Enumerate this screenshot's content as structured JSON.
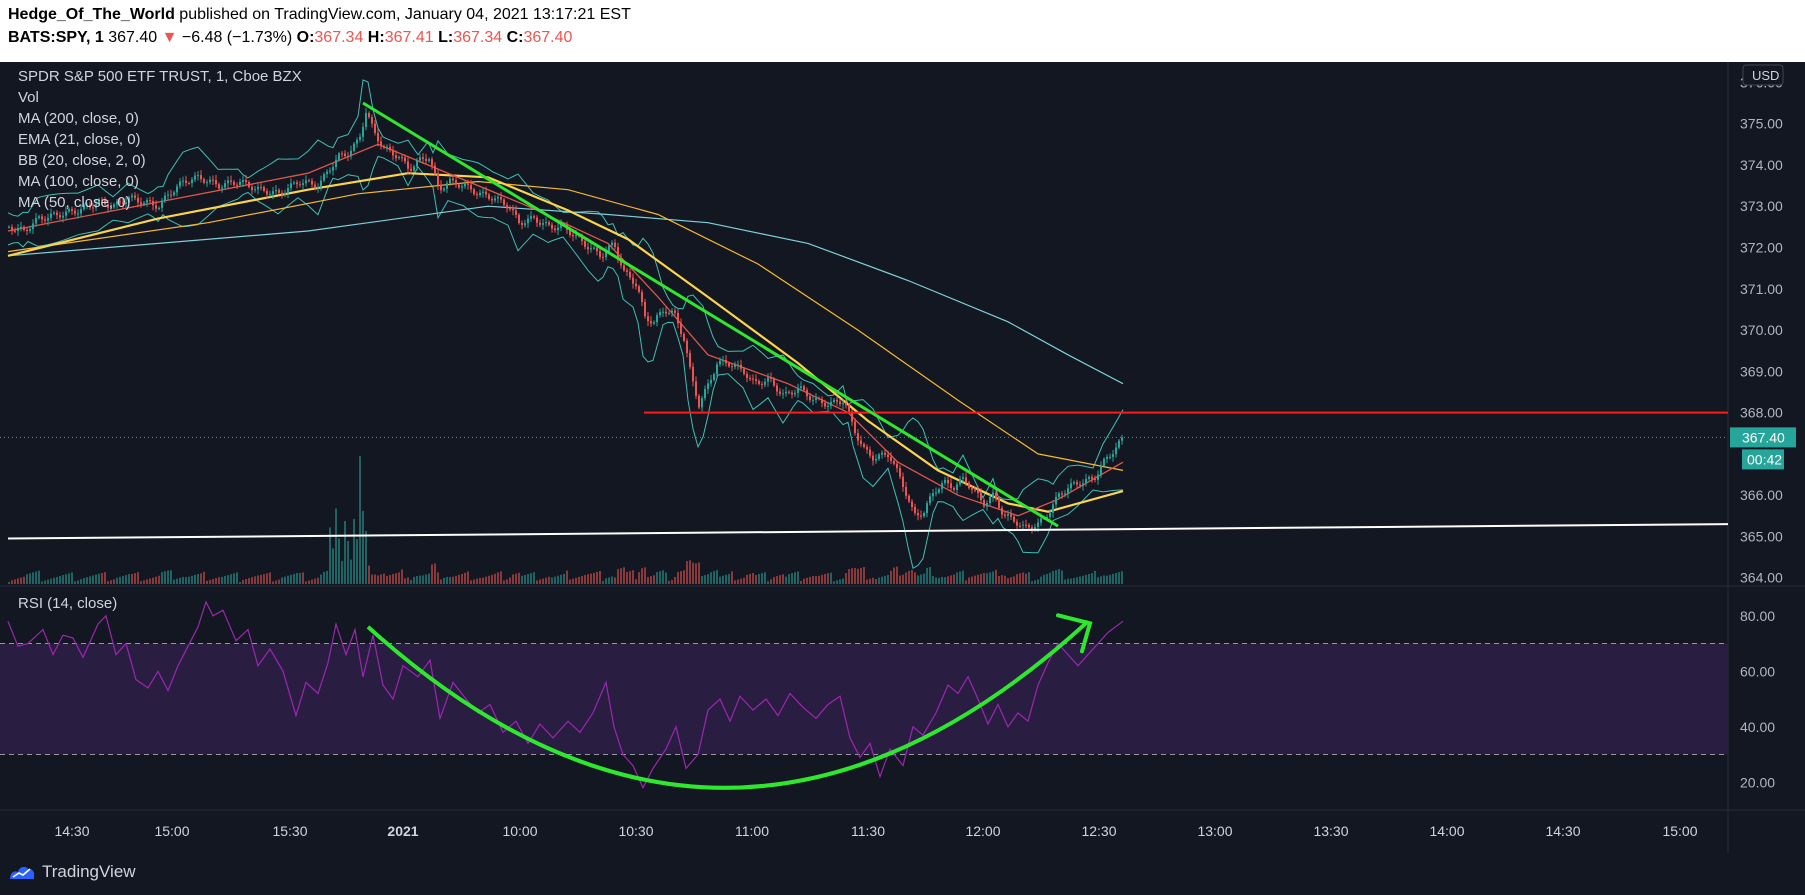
{
  "header": {
    "author": "Hedge_Of_The_World",
    "published": " published on TradingView.com, January 04, 2021 13:17:21 EST",
    "symbol": "BATS:SPY, 1",
    "last": "367.40",
    "change_arrow": "▼",
    "change": "−6.48 (−1.73%)",
    "o_label": "O:",
    "o": "367.34",
    "h_label": "H:",
    "h": "367.41",
    "l_label": "L:",
    "l": "367.34",
    "c_label": "C:",
    "c": "367.40"
  },
  "legend": {
    "title": "SPDR S&P 500 ETF TRUST, 1, Cboe BZX",
    "items": [
      "Vol",
      "MA (200, close, 0)",
      "EMA (21, close, 0)",
      "BB (20, close, 2, 0)",
      "MA (100, close, 0)",
      "MA (50, close, 0)"
    ],
    "rsi_title": "RSI (14, close)"
  },
  "price_axis": {
    "currency": "USD",
    "ticks": [
      "376.00",
      "375.00",
      "374.00",
      "373.00",
      "372.00",
      "371.00",
      "370.00",
      "369.00",
      "368.00",
      "367.00",
      "366.00",
      "365.00",
      "364.00"
    ],
    "last_price": "367.40",
    "countdown": "00:42"
  },
  "rsi_axis": {
    "ticks": [
      "80.00",
      "60.00",
      "40.00",
      "20.00"
    ]
  },
  "time_axis": {
    "ticks": [
      "14:30",
      "15:00",
      "15:30",
      "2021",
      "10:00",
      "10:30",
      "11:00",
      "11:30",
      "12:00",
      "12:30",
      "13:00",
      "13:30",
      "14:00",
      "14:30",
      "15:00"
    ]
  },
  "footer": {
    "brand": "TradingView"
  },
  "colors": {
    "background": "#131722",
    "up": "#26a69a",
    "down": "#ef5350",
    "ma200": "#7fcfd6",
    "ma100": "#f7b731",
    "ma50": "#fcd34d",
    "ema21": "#e0554c",
    "bb": "#3fbfb2",
    "rsi_line": "#9c27b0",
    "rsi_band": "#2a1d42",
    "trend_green": "#2ee82e",
    "resistance_red": "#ff1a1a",
    "support_white": "#ffffff"
  },
  "chart_data": {
    "type": "candlestick",
    "symbol": "BATS:SPY",
    "interval": "1",
    "price_range": [
      363.8,
      376.3
    ],
    "rsi_range": [
      10,
      90
    ],
    "rsi_bands": [
      30,
      70
    ],
    "close_path": [
      [
        0,
        372.5
      ],
      [
        15,
        372.4
      ],
      [
        30,
        372.7
      ],
      [
        50,
        372.8
      ],
      [
        70,
        372.9
      ],
      [
        90,
        373.1
      ],
      [
        105,
        373.0
      ],
      [
        120,
        373.2
      ],
      [
        135,
        373.1
      ],
      [
        150,
        373.0
      ],
      [
        160,
        373.3
      ],
      [
        175,
        373.6
      ],
      [
        190,
        373.7
      ],
      [
        210,
        373.5
      ],
      [
        230,
        373.6
      ],
      [
        250,
        373.4
      ],
      [
        270,
        373.3
      ],
      [
        290,
        373.6
      ],
      [
        310,
        373.5
      ],
      [
        320,
        373.9
      ],
      [
        330,
        374.2
      ],
      [
        340,
        374.3
      ],
      [
        350,
        374.6
      ],
      [
        357,
        375.3
      ],
      [
        365,
        374.8
      ],
      [
        375,
        374.4
      ],
      [
        390,
        374.2
      ],
      [
        400,
        373.9
      ],
      [
        410,
        374.1
      ],
      [
        420,
        374.2
      ],
      [
        430,
        373.4
      ],
      [
        440,
        373.6
      ],
      [
        455,
        373.5
      ],
      [
        470,
        373.3
      ],
      [
        485,
        373.2
      ],
      [
        500,
        373.0
      ],
      [
        510,
        372.6
      ],
      [
        525,
        372.7
      ],
      [
        540,
        372.5
      ],
      [
        555,
        372.5
      ],
      [
        565,
        372.3
      ],
      [
        580,
        372.0
      ],
      [
        592,
        371.8
      ],
      [
        605,
        372.1
      ],
      [
        615,
        371.4
      ],
      [
        628,
        371.1
      ],
      [
        636,
        370.3
      ],
      [
        645,
        370.2
      ],
      [
        655,
        370.5
      ],
      [
        665,
        370.4
      ],
      [
        675,
        369.8
      ],
      [
        682,
        368.9
      ],
      [
        690,
        368.2
      ],
      [
        700,
        368.7
      ],
      [
        708,
        369.2
      ],
      [
        720,
        369.2
      ],
      [
        735,
        369.0
      ],
      [
        745,
        368.7
      ],
      [
        760,
        368.8
      ],
      [
        775,
        368.4
      ],
      [
        790,
        368.6
      ],
      [
        805,
        368.3
      ],
      [
        820,
        368.2
      ],
      [
        835,
        368.3
      ],
      [
        845,
        367.6
      ],
      [
        855,
        367.1
      ],
      [
        865,
        366.9
      ],
      [
        880,
        367.0
      ],
      [
        895,
        366.2
      ],
      [
        905,
        365.5
      ],
      [
        915,
        365.6
      ],
      [
        925,
        366.1
      ],
      [
        935,
        366.3
      ],
      [
        945,
        366.2
      ],
      [
        955,
        366.4
      ],
      [
        965,
        366.1
      ],
      [
        975,
        365.8
      ],
      [
        985,
        366.0
      ],
      [
        995,
        365.5
      ],
      [
        1005,
        365.4
      ],
      [
        1015,
        365.2
      ],
      [
        1030,
        365.3
      ],
      [
        1040,
        365.6
      ],
      [
        1050,
        366.0
      ],
      [
        1060,
        366.2
      ],
      [
        1070,
        366.3
      ],
      [
        1085,
        366.4
      ],
      [
        1095,
        366.8
      ],
      [
        1105,
        367.1
      ],
      [
        1115,
        367.4
      ]
    ],
    "ma200_path": [
      [
        0,
        371.8
      ],
      [
        300,
        372.4
      ],
      [
        480,
        373.0
      ],
      [
        600,
        372.8
      ],
      [
        700,
        372.6
      ],
      [
        800,
        372.1
      ],
      [
        900,
        371.2
      ],
      [
        1000,
        370.2
      ],
      [
        1060,
        369.4
      ],
      [
        1115,
        368.7
      ]
    ],
    "ma100_path": [
      [
        0,
        371.9
      ],
      [
        200,
        372.6
      ],
      [
        350,
        373.3
      ],
      [
        470,
        373.6
      ],
      [
        560,
        373.4
      ],
      [
        650,
        372.8
      ],
      [
        750,
        371.6
      ],
      [
        850,
        370.0
      ],
      [
        950,
        368.3
      ],
      [
        1030,
        367.0
      ],
      [
        1115,
        366.6
      ]
    ],
    "ma50_path": [
      [
        0,
        371.8
      ],
      [
        150,
        372.7
      ],
      [
        300,
        373.4
      ],
      [
        400,
        373.8
      ],
      [
        480,
        373.7
      ],
      [
        560,
        372.9
      ],
      [
        620,
        372.2
      ],
      [
        700,
        370.8
      ],
      [
        790,
        369.2
      ],
      [
        860,
        367.8
      ],
      [
        930,
        366.6
      ],
      [
        1000,
        365.8
      ],
      [
        1040,
        365.6
      ],
      [
        1115,
        366.1
      ]
    ],
    "ema21_path": [
      [
        0,
        372.4
      ],
      [
        150,
        373.1
      ],
      [
        300,
        373.8
      ],
      [
        370,
        374.5
      ],
      [
        430,
        373.9
      ],
      [
        520,
        373.0
      ],
      [
        600,
        372.1
      ],
      [
        650,
        370.8
      ],
      [
        700,
        369.4
      ],
      [
        780,
        368.7
      ],
      [
        840,
        368.0
      ],
      [
        890,
        366.8
      ],
      [
        950,
        366.0
      ],
      [
        1010,
        365.5
      ],
      [
        1050,
        365.9
      ],
      [
        1115,
        366.8
      ]
    ],
    "volume_spike": {
      "x": 352,
      "value_rel": 1.0
    },
    "rsi_path": [
      [
        0,
        78
      ],
      [
        10,
        69
      ],
      [
        20,
        70
      ],
      [
        35,
        75
      ],
      [
        45,
        66
      ],
      [
        55,
        73
      ],
      [
        65,
        72
      ],
      [
        75,
        65
      ],
      [
        90,
        77
      ],
      [
        98,
        80
      ],
      [
        108,
        66
      ],
      [
        118,
        70
      ],
      [
        128,
        57
      ],
      [
        140,
        54
      ],
      [
        150,
        60
      ],
      [
        160,
        53
      ],
      [
        170,
        62
      ],
      [
        180,
        69
      ],
      [
        190,
        76
      ],
      [
        198,
        85
      ],
      [
        205,
        80
      ],
      [
        215,
        82
      ],
      [
        228,
        71
      ],
      [
        240,
        75
      ],
      [
        250,
        62
      ],
      [
        262,
        68
      ],
      [
        275,
        60
      ],
      [
        288,
        44
      ],
      [
        298,
        56
      ],
      [
        310,
        52
      ],
      [
        320,
        63
      ],
      [
        328,
        77
      ],
      [
        338,
        66
      ],
      [
        347,
        75
      ],
      [
        355,
        58
      ],
      [
        365,
        73
      ],
      [
        375,
        55
      ],
      [
        385,
        50
      ],
      [
        395,
        62
      ],
      [
        410,
        58
      ],
      [
        422,
        64
      ],
      [
        432,
        43
      ],
      [
        445,
        56
      ],
      [
        458,
        50
      ],
      [
        470,
        45
      ],
      [
        482,
        48
      ],
      [
        495,
        38
      ],
      [
        508,
        42
      ],
      [
        520,
        34
      ],
      [
        532,
        41
      ],
      [
        545,
        36
      ],
      [
        560,
        42
      ],
      [
        572,
        38
      ],
      [
        585,
        45
      ],
      [
        598,
        56
      ],
      [
        606,
        40
      ],
      [
        615,
        30
      ],
      [
        625,
        26
      ],
      [
        635,
        18
      ],
      [
        645,
        25
      ],
      [
        658,
        32
      ],
      [
        668,
        40
      ],
      [
        678,
        25
      ],
      [
        690,
        30
      ],
      [
        700,
        46
      ],
      [
        712,
        50
      ],
      [
        722,
        42
      ],
      [
        732,
        51
      ],
      [
        745,
        46
      ],
      [
        758,
        50
      ],
      [
        770,
        44
      ],
      [
        782,
        52
      ],
      [
        795,
        47
      ],
      [
        808,
        43
      ],
      [
        820,
        48
      ],
      [
        832,
        51
      ],
      [
        842,
        36
      ],
      [
        852,
        29
      ],
      [
        862,
        34
      ],
      [
        872,
        22
      ],
      [
        882,
        32
      ],
      [
        895,
        26
      ],
      [
        905,
        40
      ],
      [
        915,
        37
      ],
      [
        928,
        45
      ],
      [
        940,
        55
      ],
      [
        950,
        52
      ],
      [
        960,
        58
      ],
      [
        970,
        50
      ],
      [
        980,
        41
      ],
      [
        990,
        48
      ],
      [
        1000,
        40
      ],
      [
        1010,
        45
      ],
      [
        1020,
        42
      ],
      [
        1030,
        55
      ],
      [
        1040,
        63
      ],
      [
        1050,
        70
      ],
      [
        1060,
        66
      ],
      [
        1070,
        62
      ],
      [
        1080,
        66
      ],
      [
        1090,
        70
      ],
      [
        1100,
        74
      ],
      [
        1115,
        78
      ]
    ],
    "drawings": {
      "resistance": 368.0,
      "support": [
        [
          0,
          364.95
        ],
        [
          1500,
          365.3
        ]
      ],
      "trendline": [
        [
          355,
          375.5
        ],
        [
          1050,
          365.25
        ]
      ],
      "rsi_arc": [
        [
          360,
          76
        ],
        [
          720,
          18
        ],
        [
          1080,
          78
        ]
      ]
    }
  }
}
